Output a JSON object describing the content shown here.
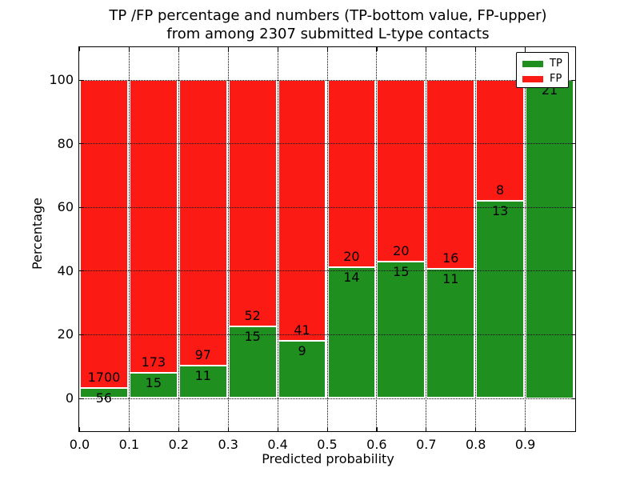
{
  "title": {
    "line1": "TP /FP percentage and numbers (TP-bottom value, FP-upper)",
    "line2": "from among 2307 submitted L-type contacts"
  },
  "axes": {
    "xlabel": "Predicted probability",
    "ylabel": "Percentage",
    "x_tick_labels": [
      "0.0",
      "0.1",
      "0.2",
      "0.3",
      "0.4",
      "0.5",
      "0.6",
      "0.7",
      "0.8",
      "0.9"
    ],
    "y_tick_labels": [
      "0",
      "20",
      "40",
      "60",
      "80",
      "100"
    ]
  },
  "legend": {
    "items": [
      {
        "label": "TP",
        "color": "#1f8f1f"
      },
      {
        "label": "FP",
        "color": "#fc1a15"
      }
    ]
  },
  "chart_data": {
    "type": "bar",
    "stacked": true,
    "normalized_to_percent": true,
    "title": "TP /FP percentage and numbers (TP-bottom value, FP-upper) from among 2307 submitted L-type contacts",
    "xlabel": "Predicted probability",
    "ylabel": "Percentage",
    "total_contacts": 2307,
    "bins": [
      "0.0-0.1",
      "0.1-0.2",
      "0.2-0.3",
      "0.3-0.4",
      "0.4-0.5",
      "0.5-0.6",
      "0.6-0.7",
      "0.7-0.8",
      "0.8-0.9",
      "0.9-1.0"
    ],
    "series": [
      {
        "name": "TP",
        "color": "#1f8f1f",
        "values": [
          56,
          15,
          11,
          15,
          9,
          14,
          15,
          11,
          13,
          21
        ]
      },
      {
        "name": "FP",
        "color": "#fc1a15",
        "values": [
          1700,
          173,
          97,
          52,
          41,
          20,
          20,
          16,
          8,
          0
        ]
      }
    ],
    "tp_percent": [
      3.2,
      8.0,
      10.2,
      22.4,
      18.0,
      41.2,
      42.9,
      40.7,
      61.9,
      100.0
    ],
    "xlim": [
      0.0,
      1.0
    ],
    "ylim": [
      -10.5,
      110
    ],
    "y_ticks": [
      0,
      20,
      40,
      60,
      80,
      100
    ],
    "x_ticks": [
      0.0,
      0.1,
      0.2,
      0.3,
      0.4,
      0.5,
      0.6,
      0.7,
      0.8,
      0.9
    ],
    "grid": true,
    "grid_style": "dotted",
    "legend_position": "upper right"
  }
}
